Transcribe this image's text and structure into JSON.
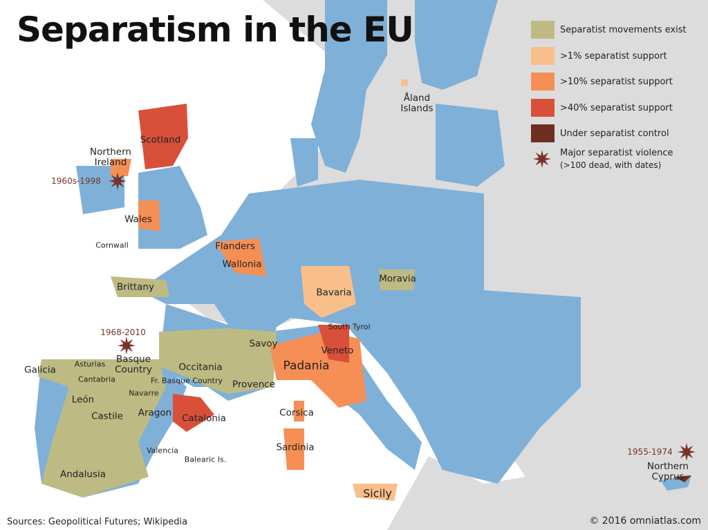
{
  "title": "Separatism in the EU",
  "legend": [
    {
      "label": "Separatist movements exist",
      "color": "#bdbb83"
    },
    {
      "label": ">1% separatist support",
      "color": "#f9bf8a"
    },
    {
      "label": ">10% separatist support",
      "color": "#f58f55"
    },
    {
      "label": ">40% separatist support",
      "color": "#d9503a"
    },
    {
      "label": "Under separatist control",
      "color": "#6e2e22"
    }
  ],
  "violence_legend": {
    "label": "Major separatist violence",
    "note": "(>100 dead, with dates)",
    "color": "#7a3226"
  },
  "regions": [
    "Scotland",
    "Northern Ireland",
    "Wales",
    "Cornwall",
    "Flanders",
    "Wallonia",
    "Brittany",
    "Bavaria",
    "Moravia",
    "South Tyrol",
    "Savoy",
    "Veneto",
    "Padania",
    "Occitania",
    "Provence",
    "Galicia",
    "Asturias",
    "Cantabria",
    "Basque Country",
    "Fr. Basque Country",
    "Navarre",
    "León",
    "Castile",
    "Aragon",
    "Catalonia",
    "Corsica",
    "Valencia",
    "Balearic Is.",
    "Sardinia",
    "Andalusia",
    "Sicily",
    "Åland Islands",
    "Northern Cyprus"
  ],
  "violence": [
    "1960s-1998",
    "1968-2010",
    "1955-1974"
  ],
  "footer": {
    "sources": "Sources: Geopolitical Futures; Wikipedia",
    "copyright": "© 2016 omniatlas.com"
  }
}
